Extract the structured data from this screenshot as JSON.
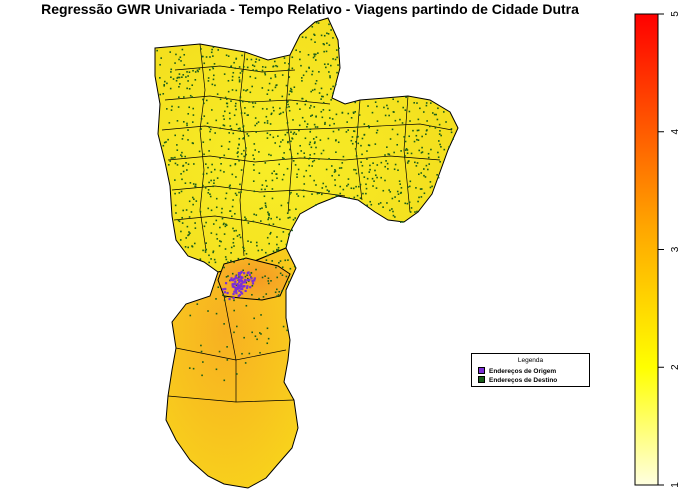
{
  "title": "Regressão GWR Univariada - Tempo Relativo - Viagens partindo de Cidade Dutra",
  "legend": {
    "title": "Legenda",
    "items": [
      {
        "label": "Endereços de Origem",
        "color": "#7b2fd6"
      },
      {
        "label": "Endereços de Destino",
        "color": "#1a5e1a"
      }
    ]
  },
  "colorbar": {
    "min": 1,
    "max": 5,
    "ticks": [
      "1",
      "2",
      "3",
      "4",
      "5"
    ],
    "colors": [
      "#ffffe0",
      "#ffff00",
      "#ffa500",
      "#ff0000"
    ]
  },
  "map_colors": {
    "north_fill": "#f6e61a",
    "south_fill": "#f8c01a",
    "hotspot_fill": "#f5a020",
    "border": "#000000",
    "origin_point": "#7b2fd6",
    "destination_point": "#1a5e1a"
  }
}
